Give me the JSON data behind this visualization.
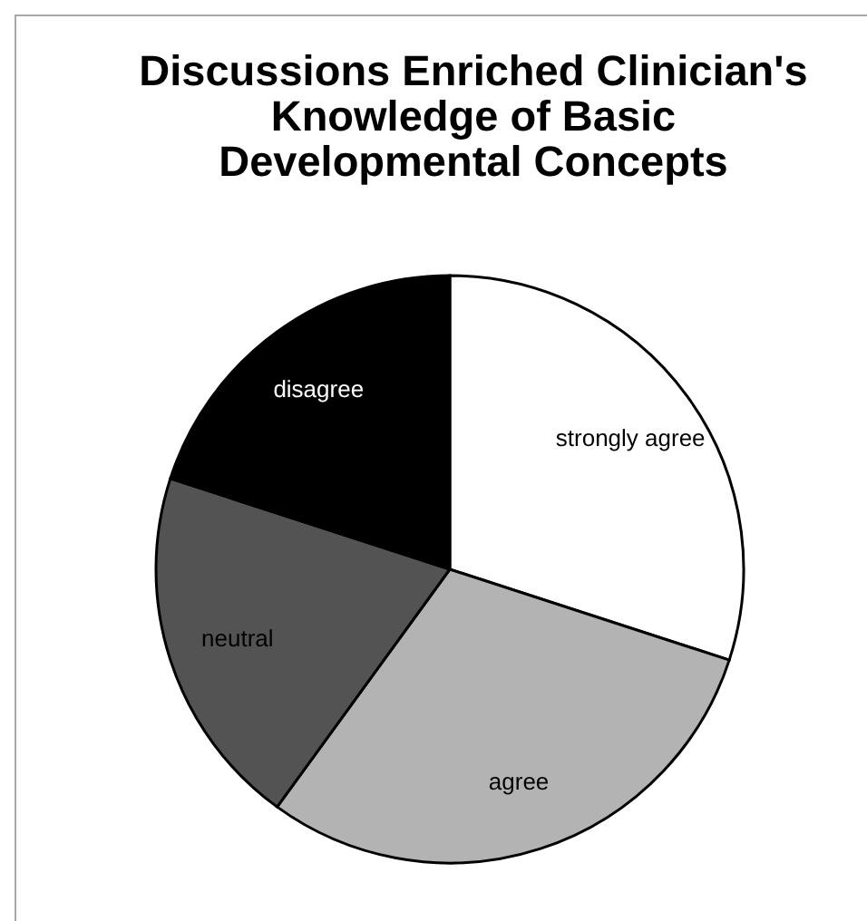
{
  "chart_data": {
    "type": "pie",
    "title": "Discussions Enriched Clinician's Knowledge of Basic Developmental Concepts",
    "categories": [
      "strongly agree",
      "agree",
      "neutral",
      "disagree"
    ],
    "values": [
      30,
      30,
      20,
      20
    ],
    "colors": [
      "#ffffff",
      "#b3b3b3",
      "#535353",
      "#000000"
    ]
  }
}
